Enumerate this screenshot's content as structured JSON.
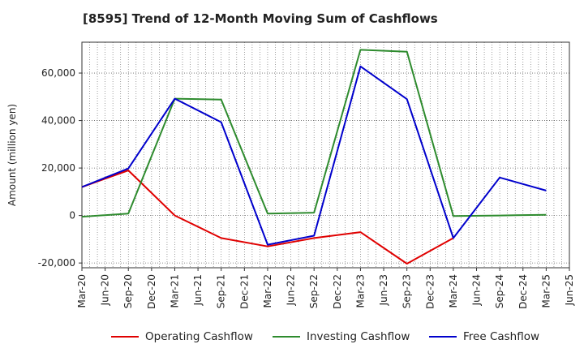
{
  "chart_data": {
    "type": "line",
    "title": "[8595]  Trend of 12-Month Moving Sum of Cashflows",
    "ylabel": "Amount (million yen)",
    "xlabel": "",
    "categories": [
      "Mar-20",
      "Jun-20",
      "Sep-20",
      "Dec-20",
      "Mar-21",
      "Jun-21",
      "Sep-21",
      "Dec-21",
      "Mar-22",
      "Jun-22",
      "Sep-22",
      "Dec-22",
      "Mar-23",
      "Jun-23",
      "Sep-23",
      "Dec-23",
      "Mar-24",
      "Jun-24",
      "Sep-24",
      "Dec-24",
      "Mar-25",
      "Jun-25"
    ],
    "ylim": [
      -22000,
      73000
    ],
    "yticks": [
      -20000,
      0,
      20000,
      40000,
      60000
    ],
    "ytick_labels": [
      "-20,000",
      "0",
      "20,000",
      "40,000",
      "60,000"
    ],
    "grid": true,
    "legend_position": "bottom",
    "series": [
      {
        "name": "Operating Cashflow",
        "color": "#e00000",
        "points": [
          {
            "x": "Mar-20",
            "y": 12000
          },
          {
            "x": "Sep-20",
            "y": 19000
          },
          {
            "x": "Mar-21",
            "y": 0
          },
          {
            "x": "Sep-21",
            "y": -9500
          },
          {
            "x": "Mar-22",
            "y": -13000
          },
          {
            "x": "Sep-22",
            "y": -9500
          },
          {
            "x": "Mar-23",
            "y": -7000
          },
          {
            "x": "Sep-23",
            "y": -20300
          },
          {
            "x": "Mar-24",
            "y": -9500
          }
        ]
      },
      {
        "name": "Investing Cashflow",
        "color": "#2e8b2e",
        "points": [
          {
            "x": "Mar-20",
            "y": -500
          },
          {
            "x": "Sep-20",
            "y": 800
          },
          {
            "x": "Mar-21",
            "y": 49200
          },
          {
            "x": "Sep-21",
            "y": 48800
          },
          {
            "x": "Mar-22",
            "y": 800
          },
          {
            "x": "Sep-22",
            "y": 1200
          },
          {
            "x": "Mar-23",
            "y": 69800
          },
          {
            "x": "Sep-23",
            "y": 69000
          },
          {
            "x": "Mar-24",
            "y": -200
          },
          {
            "x": "Sep-24",
            "y": 0
          },
          {
            "x": "Mar-25",
            "y": 300
          }
        ]
      },
      {
        "name": "Free Cashflow",
        "color": "#0000cc",
        "points": [
          {
            "x": "Mar-20",
            "y": 12000
          },
          {
            "x": "Sep-20",
            "y": 19800
          },
          {
            "x": "Mar-21",
            "y": 49200
          },
          {
            "x": "Sep-21",
            "y": 39300
          },
          {
            "x": "Mar-22",
            "y": -12300
          },
          {
            "x": "Sep-22",
            "y": -8500
          },
          {
            "x": "Mar-23",
            "y": 62800
          },
          {
            "x": "Sep-23",
            "y": 49000
          },
          {
            "x": "Mar-24",
            "y": -9500
          },
          {
            "x": "Sep-24",
            "y": 16000
          },
          {
            "x": "Mar-25",
            "y": 10500
          }
        ]
      }
    ]
  }
}
